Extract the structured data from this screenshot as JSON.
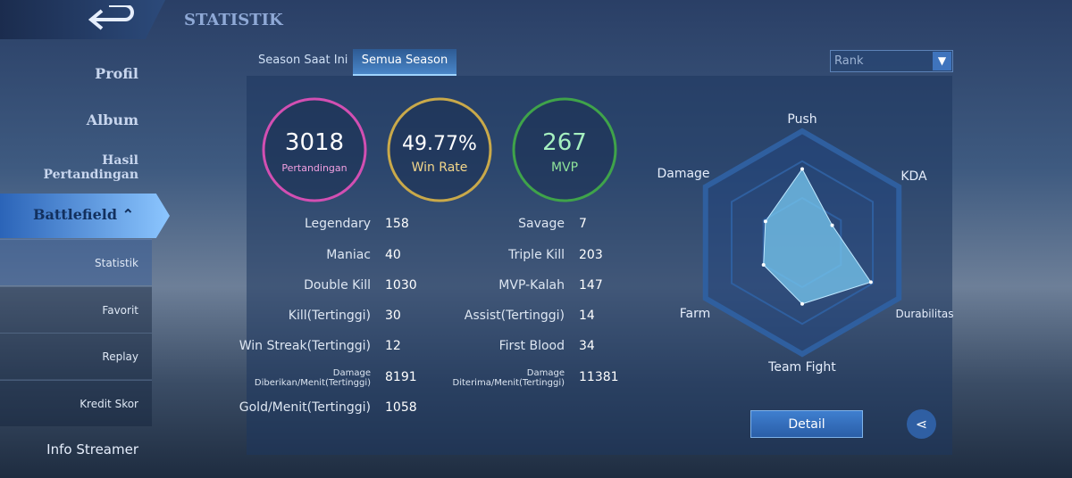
{
  "header": {
    "title": "STATISTIK"
  },
  "sidebar": {
    "items": [
      "Profil",
      "Album",
      "Hasil Pertandingan",
      "Battlefield",
      "Statistik",
      "Favorit",
      "Replay",
      "Kredit Skor",
      "Info Streamer"
    ]
  },
  "tabs": [
    "Season Saat Ini",
    "Semua Season"
  ],
  "dropdown": {
    "selected": "Rank"
  },
  "summary": [
    {
      "value": 3018,
      "label": "Pertandingan"
    },
    {
      "value": "49.77%",
      "label": "Win Rate"
    },
    {
      "value": 267,
      "label": "MVP"
    }
  ],
  "stats": {
    "left": [
      {
        "label": "Legendary",
        "value": 158
      },
      {
        "label": "Maniac",
        "value": 40
      },
      {
        "label": "Double Kill",
        "value": 1030
      },
      {
        "label": "Kill(Tertinggi)",
        "value": 30
      },
      {
        "label": "Win Streak(Tertinggi)",
        "value": 12
      },
      {
        "label": "Damage Diberikan/Menit(Tertinggi)",
        "value": 8191
      },
      {
        "label": "Gold/Menit(Tertinggi)",
        "value": 1058
      }
    ],
    "right": [
      {
        "label": "Savage",
        "value": 7
      },
      {
        "label": "Triple Kill",
        "value": 203
      },
      {
        "label": "MVP-Kalah",
        "value": 147
      },
      {
        "label": "Assist(Tertinggi)",
        "value": 14
      },
      {
        "label": "First Blood",
        "value": 34
      },
      {
        "label": "Damage Diterima/Menit(Tertinggi)",
        "value": 11381
      }
    ]
  },
  "radar": {
    "type": "radar",
    "axes": [
      "Push",
      "KDA",
      "Durabilitas",
      "Team Fight",
      "Farm",
      "Damage"
    ],
    "values": [
      66,
      31,
      71,
      55,
      40,
      38
    ],
    "rlim": [
      0,
      100
    ]
  },
  "buttons": {
    "detail": "Detail"
  }
}
